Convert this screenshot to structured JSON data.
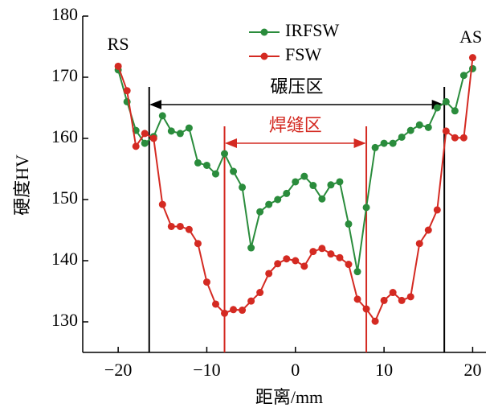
{
  "chart_data": {
    "type": "line",
    "xlabel": "距离/mm",
    "ylabel": "硬度HV",
    "x": [
      -20,
      -19,
      -18,
      -17,
      -16,
      -15,
      -14,
      -13,
      -12,
      -11,
      -10,
      -9,
      -8,
      -7,
      -6,
      -5,
      -4,
      -3,
      -2,
      -1,
      0,
      1,
      2,
      3,
      4,
      5,
      6,
      7,
      8,
      9,
      10,
      11,
      12,
      13,
      14,
      15,
      16,
      17,
      18,
      19,
      20
    ],
    "series": [
      {
        "name": "IRFSW",
        "color": "#2a8c3c",
        "values": [
          171.2,
          166,
          161.3,
          159.2,
          160.3,
          163.7,
          161.2,
          160.8,
          161.7,
          156,
          155.6,
          154.2,
          157.5,
          154.6,
          152,
          142.1,
          148,
          149.2,
          150,
          151,
          152.9,
          153.8,
          152.3,
          150.1,
          152.4,
          152.9,
          146,
          138.2,
          148.7,
          158.5,
          159.2,
          159.2,
          160.2,
          161.3,
          162.2,
          161.8,
          165,
          166,
          164.5,
          170.3,
          171.4
        ]
      },
      {
        "name": "FSW",
        "color": "#d42a22",
        "values": [
          171.8,
          167.8,
          158.7,
          160.8,
          160,
          149.2,
          145.6,
          145.6,
          145.1,
          142.8,
          136.5,
          132.9,
          131.4,
          132,
          131.9,
          133.4,
          134.8,
          137.9,
          139.5,
          140.3,
          140,
          139.1,
          141.5,
          142,
          141.1,
          140.5,
          139.4,
          133.7,
          132.1,
          130.1,
          133.5,
          134.8,
          133.5,
          134.1,
          142.8,
          145,
          148.3,
          161.2,
          160.1,
          160.1,
          173.2
        ]
      }
    ],
    "xlim": [
      -24,
      21.5
    ],
    "ylim": [
      125,
      180
    ],
    "xticks": [
      {
        "value": -20,
        "label": "−20"
      },
      {
        "value": -10,
        "label": "−10"
      },
      0,
      10,
      20
    ],
    "yticks": [
      130,
      140,
      150,
      160,
      170,
      180
    ],
    "legend": "top",
    "regions": [
      {
        "label": "碾压区",
        "x": [
          -16.5,
          16.8
        ],
        "color": "#000000"
      },
      {
        "label": "焊缝区",
        "x": [
          -8,
          8
        ],
        "color": "#d42a22"
      }
    ],
    "annotations": [
      {
        "text": "RS",
        "x": -20
      },
      {
        "text": "AS",
        "x": 19.8
      }
    ]
  }
}
